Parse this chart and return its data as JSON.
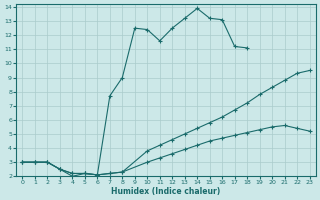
{
  "xlabel": "Humidex (Indice chaleur)",
  "bg_color": "#cce8e8",
  "line_color": "#1a6b6b",
  "grid_color": "#aacccc",
  "xlim": [
    -0.5,
    23.5
  ],
  "ylim": [
    2,
    14.2
  ],
  "xticks": [
    0,
    1,
    2,
    3,
    4,
    5,
    6,
    7,
    8,
    9,
    10,
    11,
    12,
    13,
    14,
    15,
    16,
    17,
    18,
    19,
    20,
    21,
    22,
    23
  ],
  "yticks": [
    2,
    3,
    4,
    5,
    6,
    7,
    8,
    9,
    10,
    11,
    12,
    13,
    14
  ],
  "line1_x": [
    0,
    1,
    2,
    3,
    4,
    5,
    6,
    7,
    8,
    9,
    10,
    11,
    12,
    13,
    14,
    15,
    16,
    17,
    18
  ],
  "line1_y": [
    3,
    3,
    3,
    2.5,
    2.0,
    2.2,
    2.1,
    7.7,
    9.0,
    12.5,
    12.4,
    11.6,
    12.5,
    13.2,
    13.9,
    13.2,
    13.1,
    11.2,
    11.1
  ],
  "line2_x": [
    0,
    1,
    2,
    3,
    4,
    5,
    6,
    7,
    8,
    10,
    11,
    12,
    13,
    14,
    15,
    16,
    17,
    18,
    19,
    20,
    21,
    22,
    23
  ],
  "line2_y": [
    3,
    3,
    3,
    2.5,
    2.2,
    2.2,
    2.1,
    2.2,
    2.3,
    3.8,
    4.2,
    4.6,
    5.0,
    5.4,
    5.8,
    6.2,
    6.7,
    7.2,
    7.8,
    8.3,
    8.8,
    9.3,
    9.5
  ],
  "line3_x": [
    0,
    1,
    2,
    3,
    4,
    5,
    6,
    7,
    8,
    10,
    11,
    12,
    13,
    14,
    15,
    16,
    17,
    18,
    19,
    20,
    21,
    22,
    23
  ],
  "line3_y": [
    3,
    3,
    3,
    2.5,
    2.2,
    2.2,
    2.1,
    2.2,
    2.3,
    3.0,
    3.3,
    3.6,
    3.9,
    4.2,
    4.5,
    4.7,
    4.9,
    5.1,
    5.3,
    5.5,
    5.6,
    5.4,
    5.2
  ]
}
